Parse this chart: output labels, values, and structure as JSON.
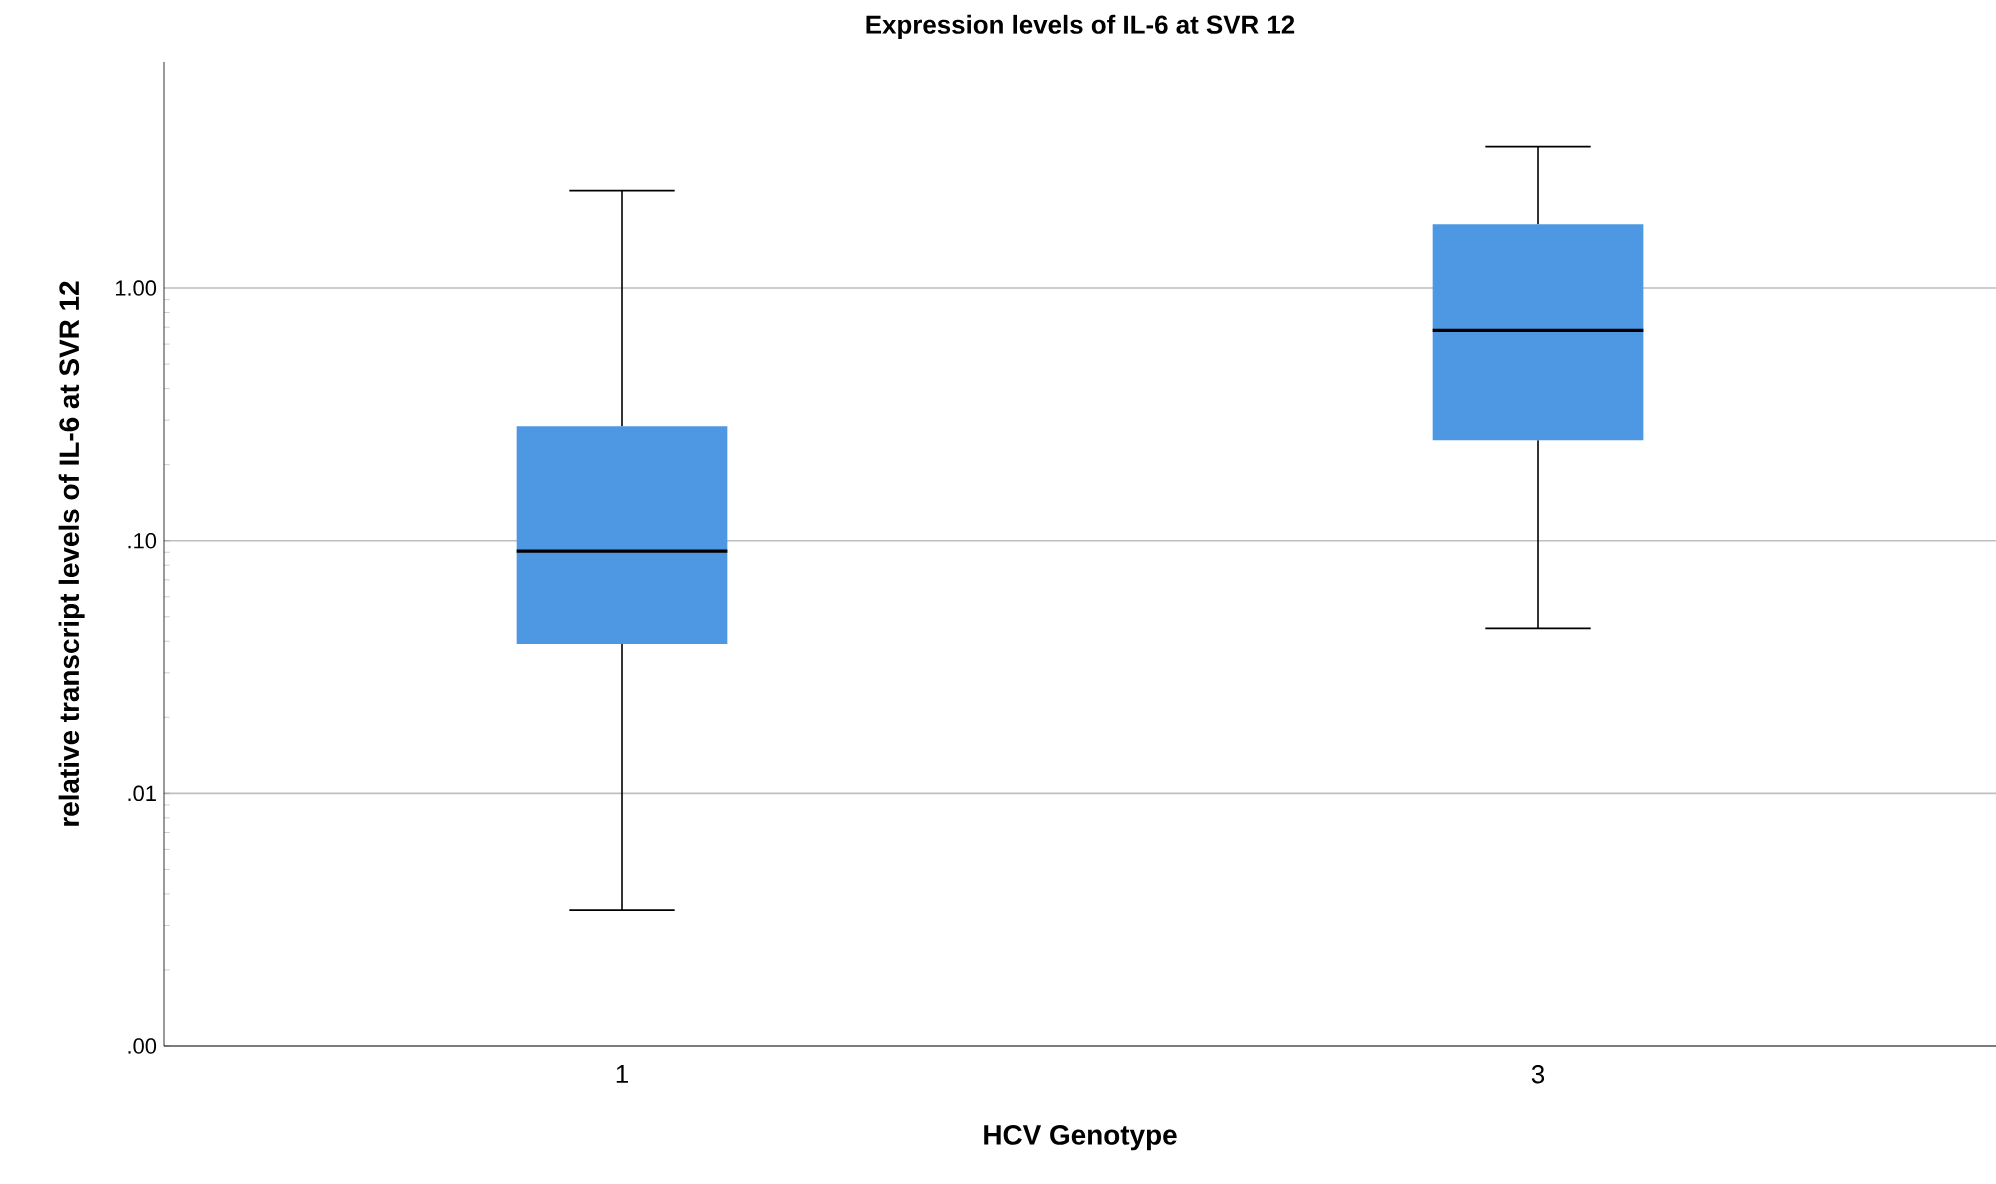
{
  "chart_data": {
    "type": "box",
    "title": "Expression levels of IL-6 at SVR 12",
    "xlabel": "HCV Genotype",
    "ylabel": "relative transcript levels of IL-6 at SVR 12",
    "categories": [
      "1",
      "3"
    ],
    "boxes": [
      {
        "low": 0.00345,
        "q1": 0.039,
        "median": 0.091,
        "q3": 0.284,
        "high": 2.43
      },
      {
        "low": 0.045,
        "q1": 0.25,
        "median": 0.68,
        "q3": 1.79,
        "high": 3.63
      }
    ],
    "color": "#4e97e2",
    "log": "y",
    "grid": "y",
    "ylim": [
      0.001,
      7.85
    ],
    "yticks": [
      {
        "value": 0.001,
        "label": ".00"
      },
      {
        "value": 0.01,
        "label": ".01"
      },
      {
        "value": 0.1,
        "label": ".10"
      },
      {
        "value": 1,
        "label": "1.00"
      }
    ]
  }
}
